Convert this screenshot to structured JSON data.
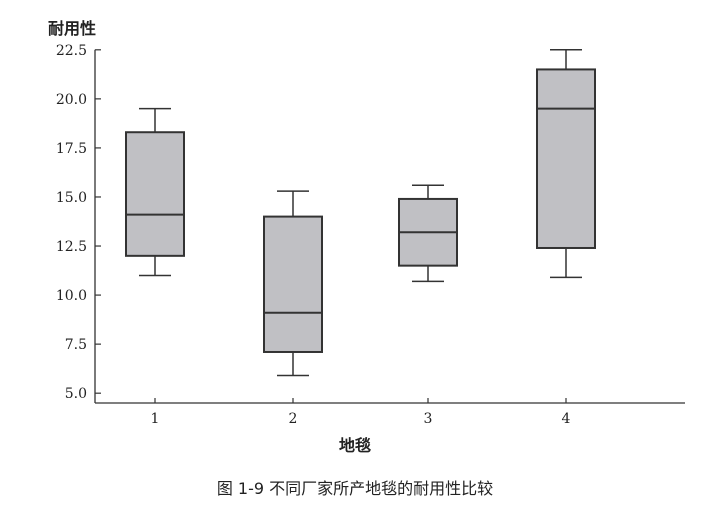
{
  "chart_data": {
    "type": "boxplot",
    "ylabel": "耐用性",
    "xlabel": "地毯",
    "caption": "图 1-9   不同厂家所产地毯的耐用性比较",
    "categories": [
      "1",
      "2",
      "3",
      "4"
    ],
    "ylim": [
      4.5,
      23.0
    ],
    "yticks": [
      "5.0",
      "7.5",
      "10.0",
      "12.5",
      "15.0",
      "17.5",
      "20.0",
      "22.5"
    ],
    "boxes": [
      {
        "min": 11.0,
        "q1": 12.0,
        "median": 14.1,
        "q3": 18.3,
        "max": 19.5
      },
      {
        "min": 5.9,
        "q1": 7.1,
        "median": 9.1,
        "q3": 14.0,
        "max": 15.3
      },
      {
        "min": 10.7,
        "q1": 11.5,
        "median": 13.2,
        "q3": 14.9,
        "max": 15.6
      },
      {
        "min": 10.9,
        "q1": 12.4,
        "median": 19.5,
        "q3": 21.5,
        "max": 22.5
      }
    ],
    "colors": {
      "box_fill": "#c0c0c4",
      "stroke": "#333333"
    }
  }
}
